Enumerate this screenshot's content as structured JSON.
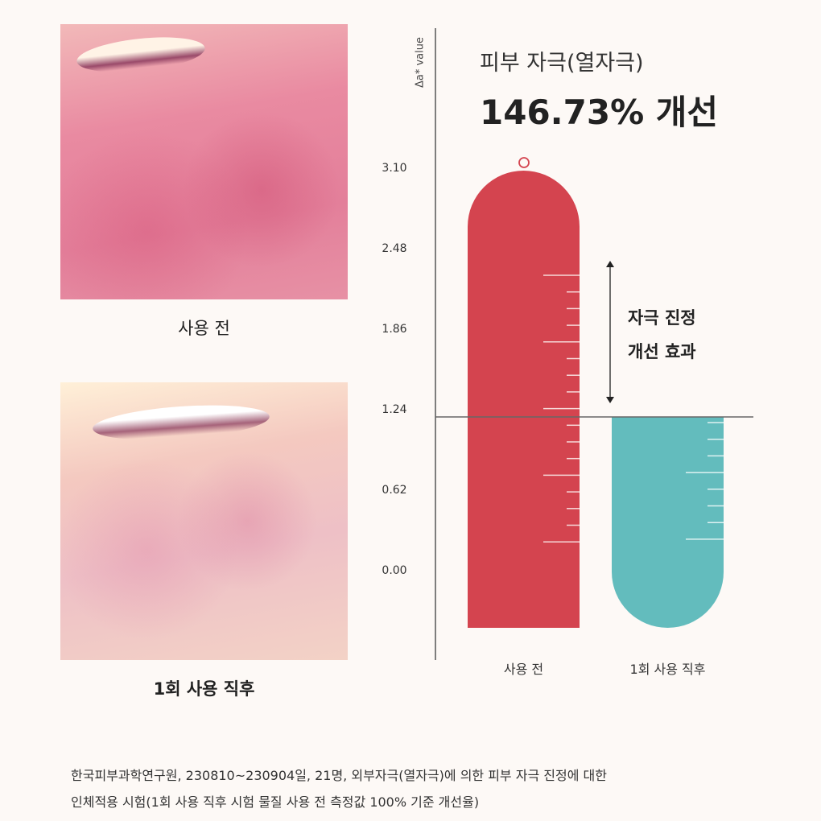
{
  "photos": [
    {
      "label": "사용 전"
    },
    {
      "label": "1회 사용 직후"
    }
  ],
  "headline": {
    "subtitle": "피부 자극(열자극)",
    "title": "146.73% 개선"
  },
  "annotation": {
    "line1": "자극 진정",
    "line2": "개선 효과"
  },
  "chart_data": {
    "type": "bar",
    "ylabel": "Δa* value",
    "yticks": [
      "3.10",
      "2.48",
      "1.86",
      "1.24",
      "0.62",
      "0.00"
    ],
    "ylim": [
      0,
      3.1
    ],
    "categories": [
      "사용 전",
      "1회 사용 직후"
    ],
    "values": [
      3.1,
      1.24
    ],
    "colors": [
      "#d4444f",
      "#63bcbd"
    ],
    "reference_line": 1.24
  },
  "footnote": {
    "line1": "한국피부과학연구원,  230810~230904일, 21명, 외부자극(열자극)에 의한 피부 자극 진정에 대한",
    "line2": "인체적용 시험(1회 사용 직후 시험 물질 사용 전 측정값 100% 기준 개선율)"
  }
}
